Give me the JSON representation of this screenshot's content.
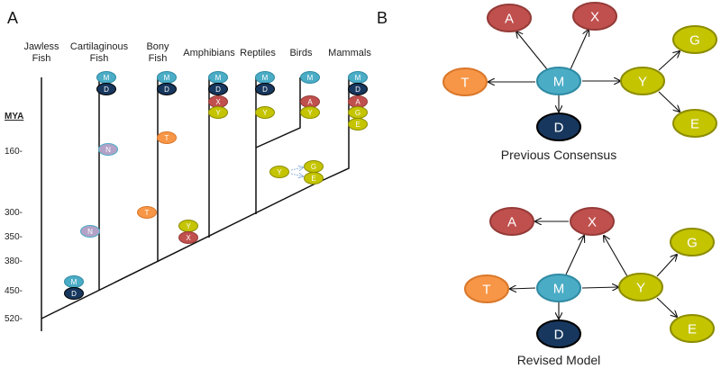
{
  "panel_a": {
    "label": "A",
    "clades": [
      "Jawless|Fish",
      "Cartilaginous|Fish",
      "Bony|Fish",
      "Amphibians",
      "Reptiles",
      "Birds",
      "Mammals"
    ],
    "axis_title": "MYA",
    "ticks": [
      "160-",
      "300-",
      "350-",
      "380-",
      "450-",
      "520-"
    ]
  },
  "panel_b": {
    "label": "B",
    "top_caption": "Previous Consensus",
    "bottom_caption": "Revised Model"
  },
  "genes": {
    "M": "M",
    "D": "D",
    "X": "X",
    "Y": "Y",
    "A": "A",
    "G": "G",
    "E": "E",
    "T": "T",
    "N": "N"
  },
  "colors": {
    "M": [
      "#4bacc6",
      "#2f8aa3"
    ],
    "D": [
      "#17375e",
      "#000000"
    ],
    "X": [
      "#c0504d",
      "#943b38"
    ],
    "A": [
      "#c0504d",
      "#943b38"
    ],
    "Y": [
      "#c4c400",
      "#8c8c00"
    ],
    "G": [
      "#c4c400",
      "#8c8c00"
    ],
    "E": [
      "#c4c400",
      "#8c8c00"
    ],
    "T": [
      "#f79646",
      "#d9772a"
    ],
    "N": [
      "#b3a2c7",
      "#4bacc6"
    ]
  }
}
